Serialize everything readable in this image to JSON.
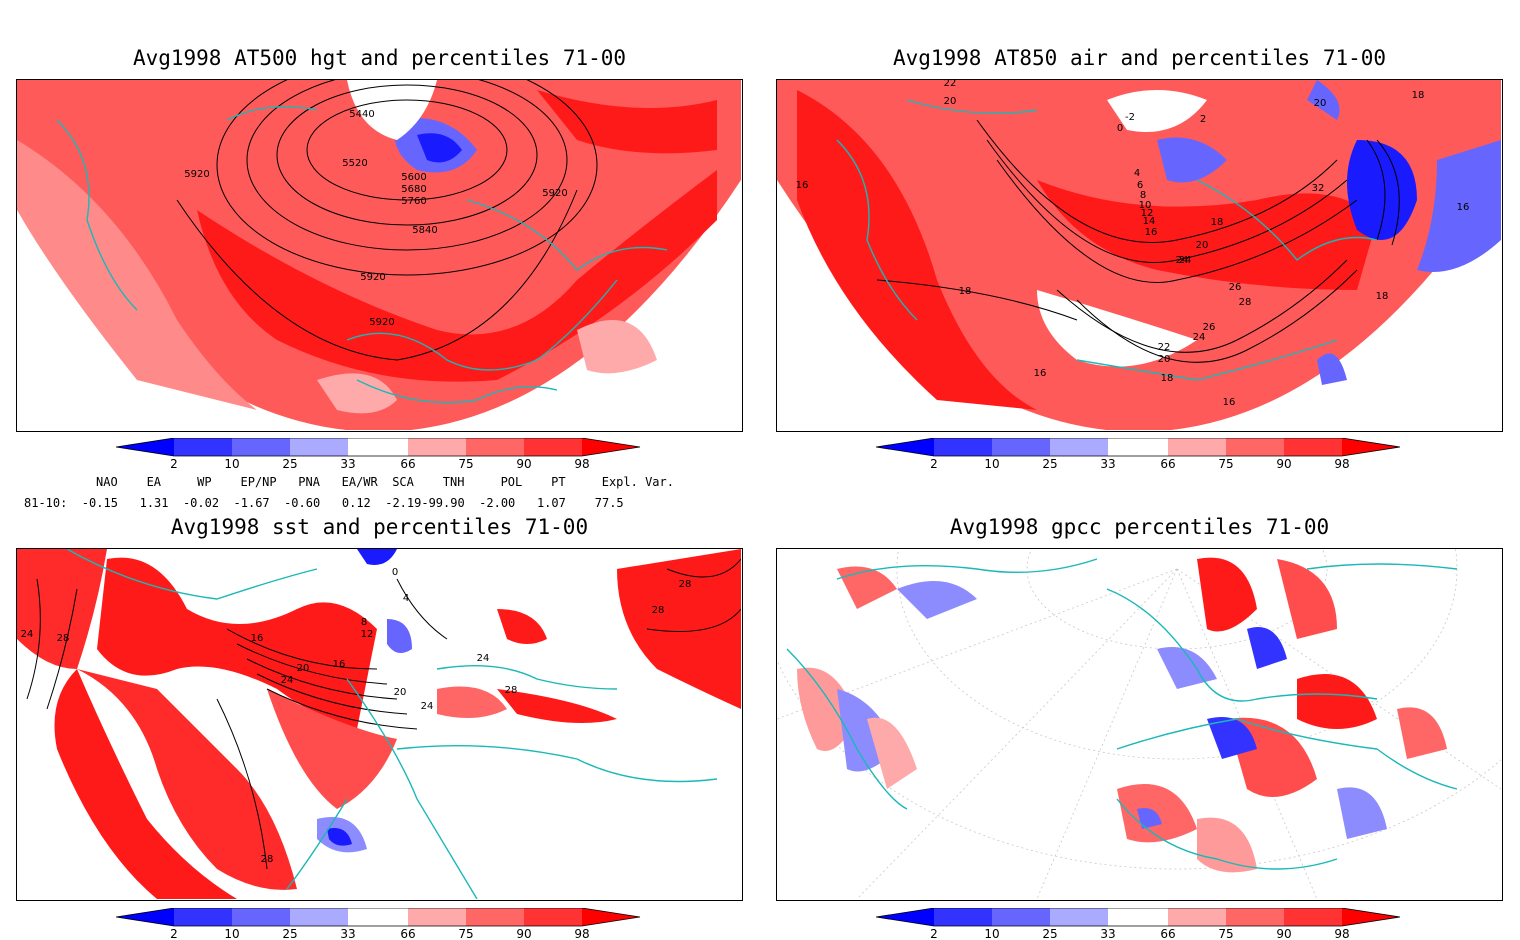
{
  "panels": [
    {
      "title": "Avg1998 AT500 hgt and percentiles 71-00",
      "contour_labels": [
        "5440",
        "5520",
        "5600",
        "5680",
        "5760",
        "5840",
        "5920",
        "5920",
        "5920",
        "5920"
      ]
    },
    {
      "title": "Avg1998 AT850 air and percentiles 71-00",
      "contour_labels": [
        "22",
        "20",
        "-2",
        "0",
        "2",
        "20",
        "24",
        "18",
        "16",
        "16",
        "18",
        "24",
        "26",
        "28",
        "26",
        "24",
        "22",
        "20",
        "18",
        "16",
        "16",
        "18",
        "32",
        "20",
        "18",
        "4",
        "6",
        "8",
        "10",
        "12",
        "14",
        "16"
      ]
    },
    {
      "title": "Avg1998 sst and percentiles 71-00",
      "contour_labels": [
        "24",
        "28",
        "16",
        "20",
        "24",
        "16",
        "12",
        "8",
        "4",
        "0",
        "28",
        "28",
        "28",
        "24",
        "20",
        "24",
        "28"
      ]
    },
    {
      "title": "Avg1998 gpcc percentiles 71-00",
      "contour_labels": []
    }
  ],
  "colorbar": {
    "labels": [
      "2",
      "10",
      "25",
      "33",
      "66",
      "75",
      "90",
      "98"
    ],
    "colors": [
      "#0000ff",
      "#3333ff",
      "#6666ff",
      "#aaaaff",
      "#ffaaaa",
      "#ff6666",
      "#ff3333",
      "#ff0000"
    ]
  },
  "indices": {
    "header": "NAO    EA     WP    EP/NP   PNA   EA/WR  SCA    TNH     POL    PT     Expl. Var.",
    "row": "81-10:  -0.15   1.31  -0.02  -1.67  -0.60   0.12  -2.19-99.90  -2.00   1.07    77.5"
  },
  "colors": {
    "coast": "#1ab8b8",
    "red_strong": "#ff1a1a",
    "red_mid": "#ff4d4d",
    "red_light": "#ff9999",
    "blue_strong": "#1a1aff",
    "blue_light": "#8c8cff"
  }
}
